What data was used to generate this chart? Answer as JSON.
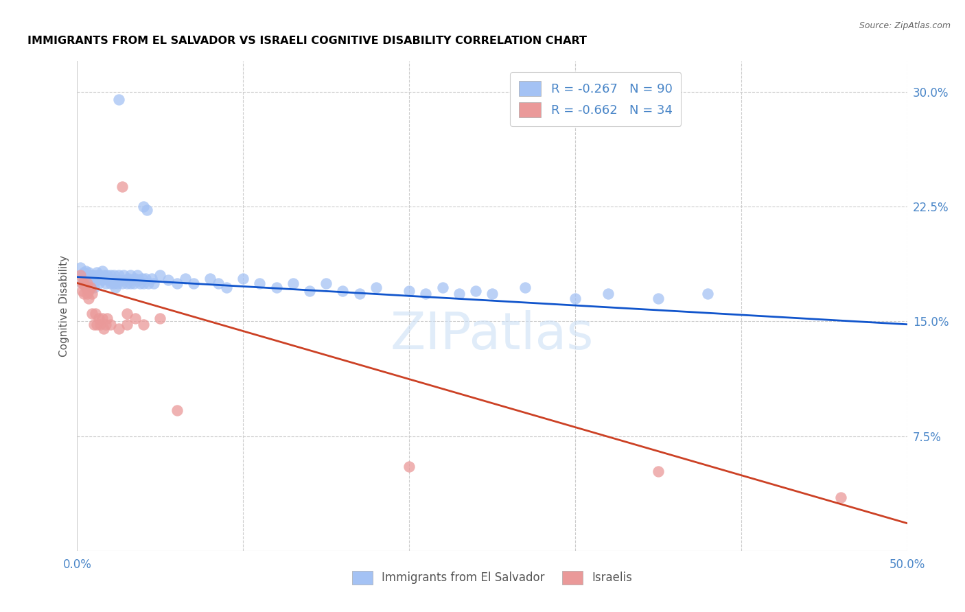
{
  "title": "IMMIGRANTS FROM EL SALVADOR VS ISRAELI COGNITIVE DISABILITY CORRELATION CHART",
  "source": "Source: ZipAtlas.com",
  "ylabel": "Cognitive Disability",
  "xlim": [
    0.0,
    0.5
  ],
  "ylim": [
    0.0,
    0.32
  ],
  "xticks": [
    0.0,
    0.1,
    0.2,
    0.3,
    0.4,
    0.5
  ],
  "yticks": [
    0.075,
    0.15,
    0.225,
    0.3
  ],
  "xticklabels": [
    "0.0%",
    "",
    "",
    "",
    "",
    "50.0%"
  ],
  "yticklabels": [
    "7.5%",
    "15.0%",
    "22.5%",
    "30.0%"
  ],
  "watermark": "ZIPatlas",
  "legend_r1": "R = -0.267   N = 90",
  "legend_r2": "R = -0.662   N = 34",
  "color_blue": "#a4c2f4",
  "color_pink": "#ea9999",
  "color_blue_line": "#1155cc",
  "color_pink_line": "#cc4125",
  "color_axis_label": "#4a86c8",
  "title_color": "#000000",
  "background_color": "#ffffff",
  "scatter_blue": [
    [
      0.002,
      0.185
    ],
    [
      0.003,
      0.18
    ],
    [
      0.003,
      0.175
    ],
    [
      0.004,
      0.182
    ],
    [
      0.004,
      0.177
    ],
    [
      0.005,
      0.183
    ],
    [
      0.005,
      0.178
    ],
    [
      0.006,
      0.18
    ],
    [
      0.006,
      0.175
    ],
    [
      0.007,
      0.182
    ],
    [
      0.007,
      0.177
    ],
    [
      0.008,
      0.178
    ],
    [
      0.008,
      0.173
    ],
    [
      0.009,
      0.18
    ],
    [
      0.009,
      0.175
    ],
    [
      0.01,
      0.178
    ],
    [
      0.01,
      0.172
    ],
    [
      0.011,
      0.18
    ],
    [
      0.012,
      0.177
    ],
    [
      0.012,
      0.182
    ],
    [
      0.013,
      0.175
    ],
    [
      0.013,
      0.18
    ],
    [
      0.014,
      0.178
    ],
    [
      0.015,
      0.183
    ],
    [
      0.015,
      0.177
    ],
    [
      0.016,
      0.18
    ],
    [
      0.017,
      0.178
    ],
    [
      0.017,
      0.175
    ],
    [
      0.018,
      0.18
    ],
    [
      0.019,
      0.177
    ],
    [
      0.02,
      0.175
    ],
    [
      0.02,
      0.18
    ],
    [
      0.021,
      0.177
    ],
    [
      0.022,
      0.175
    ],
    [
      0.022,
      0.18
    ],
    [
      0.023,
      0.172
    ],
    [
      0.023,
      0.177
    ],
    [
      0.024,
      0.175
    ],
    [
      0.025,
      0.18
    ],
    [
      0.025,
      0.295
    ],
    [
      0.026,
      0.177
    ],
    [
      0.027,
      0.175
    ],
    [
      0.028,
      0.18
    ],
    [
      0.029,
      0.177
    ],
    [
      0.03,
      0.175
    ],
    [
      0.031,
      0.178
    ],
    [
      0.032,
      0.175
    ],
    [
      0.032,
      0.18
    ],
    [
      0.033,
      0.177
    ],
    [
      0.034,
      0.175
    ],
    [
      0.035,
      0.178
    ],
    [
      0.036,
      0.18
    ],
    [
      0.037,
      0.177
    ],
    [
      0.038,
      0.175
    ],
    [
      0.039,
      0.178
    ],
    [
      0.04,
      0.175
    ],
    [
      0.04,
      0.225
    ],
    [
      0.041,
      0.178
    ],
    [
      0.042,
      0.223
    ],
    [
      0.043,
      0.175
    ],
    [
      0.045,
      0.178
    ],
    [
      0.046,
      0.175
    ],
    [
      0.05,
      0.18
    ],
    [
      0.055,
      0.177
    ],
    [
      0.06,
      0.175
    ],
    [
      0.065,
      0.178
    ],
    [
      0.07,
      0.175
    ],
    [
      0.08,
      0.178
    ],
    [
      0.085,
      0.175
    ],
    [
      0.09,
      0.172
    ],
    [
      0.1,
      0.178
    ],
    [
      0.11,
      0.175
    ],
    [
      0.12,
      0.172
    ],
    [
      0.13,
      0.175
    ],
    [
      0.14,
      0.17
    ],
    [
      0.15,
      0.175
    ],
    [
      0.16,
      0.17
    ],
    [
      0.17,
      0.168
    ],
    [
      0.18,
      0.172
    ],
    [
      0.2,
      0.17
    ],
    [
      0.21,
      0.168
    ],
    [
      0.22,
      0.172
    ],
    [
      0.23,
      0.168
    ],
    [
      0.24,
      0.17
    ],
    [
      0.25,
      0.168
    ],
    [
      0.27,
      0.172
    ],
    [
      0.3,
      0.165
    ],
    [
      0.32,
      0.168
    ],
    [
      0.35,
      0.165
    ],
    [
      0.38,
      0.168
    ]
  ],
  "scatter_pink": [
    [
      0.002,
      0.18
    ],
    [
      0.003,
      0.175
    ],
    [
      0.003,
      0.17
    ],
    [
      0.004,
      0.175
    ],
    [
      0.004,
      0.168
    ],
    [
      0.005,
      0.172
    ],
    [
      0.006,
      0.168
    ],
    [
      0.006,
      0.175
    ],
    [
      0.007,
      0.17
    ],
    [
      0.007,
      0.165
    ],
    [
      0.008,
      0.172
    ],
    [
      0.009,
      0.168
    ],
    [
      0.009,
      0.155
    ],
    [
      0.01,
      0.148
    ],
    [
      0.011,
      0.155
    ],
    [
      0.012,
      0.148
    ],
    [
      0.013,
      0.152
    ],
    [
      0.014,
      0.148
    ],
    [
      0.015,
      0.152
    ],
    [
      0.016,
      0.145
    ],
    [
      0.017,
      0.148
    ],
    [
      0.018,
      0.152
    ],
    [
      0.02,
      0.148
    ],
    [
      0.025,
      0.145
    ],
    [
      0.027,
      0.238
    ],
    [
      0.03,
      0.155
    ],
    [
      0.03,
      0.148
    ],
    [
      0.035,
      0.152
    ],
    [
      0.04,
      0.148
    ],
    [
      0.05,
      0.152
    ],
    [
      0.06,
      0.092
    ],
    [
      0.2,
      0.055
    ],
    [
      0.35,
      0.052
    ],
    [
      0.46,
      0.035
    ]
  ],
  "trendline_blue": [
    [
      0.0,
      0.179
    ],
    [
      0.5,
      0.148
    ]
  ],
  "trendline_pink": [
    [
      0.0,
      0.175
    ],
    [
      0.5,
      0.018
    ]
  ],
  "figsize": [
    14.06,
    8.92
  ],
  "dpi": 100
}
